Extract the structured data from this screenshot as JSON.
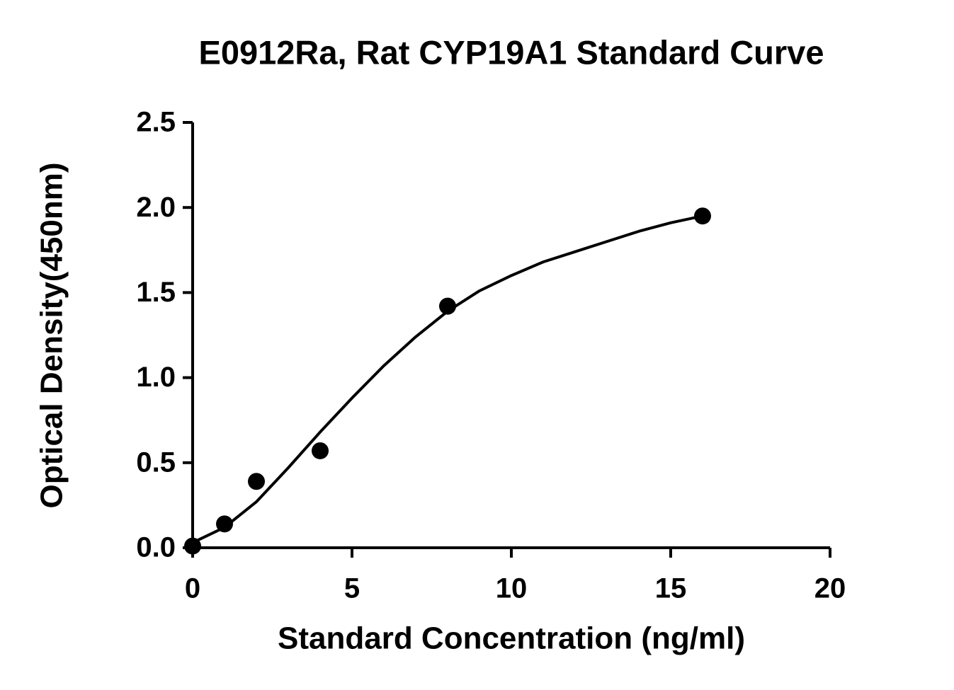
{
  "chart_data": {
    "type": "scatter",
    "title": "E0912Ra, Rat CYP19A1 Standard Curve",
    "xlabel": "Standard Concentration (ng/ml)",
    "ylabel": "Optical Density(450nm)",
    "x": [
      0,
      1,
      2,
      4,
      8,
      16
    ],
    "values": [
      0.01,
      0.14,
      0.39,
      0.57,
      1.42,
      1.95
    ],
    "color": "#000000",
    "fit": {
      "x": [
        0,
        1,
        2,
        3,
        4,
        5,
        6,
        7,
        8,
        9,
        10,
        11,
        12,
        13,
        14,
        15,
        16
      ],
      "values": [
        0.03,
        0.12,
        0.27,
        0.47,
        0.68,
        0.88,
        1.07,
        1.24,
        1.39,
        1.51,
        1.6,
        1.68,
        1.74,
        1.8,
        1.86,
        1.91,
        1.95
      ]
    },
    "xlim": [
      0,
      20
    ],
    "xticks": [
      0,
      5,
      10,
      15,
      20
    ],
    "ylim": [
      0,
      2.5
    ],
    "yticks": [
      {
        "value": 0,
        "label": "0.0"
      },
      0.5,
      {
        "value": 1,
        "label": "1.0"
      },
      1.5,
      {
        "value": 2,
        "label": "2.0"
      },
      2.5
    ]
  }
}
